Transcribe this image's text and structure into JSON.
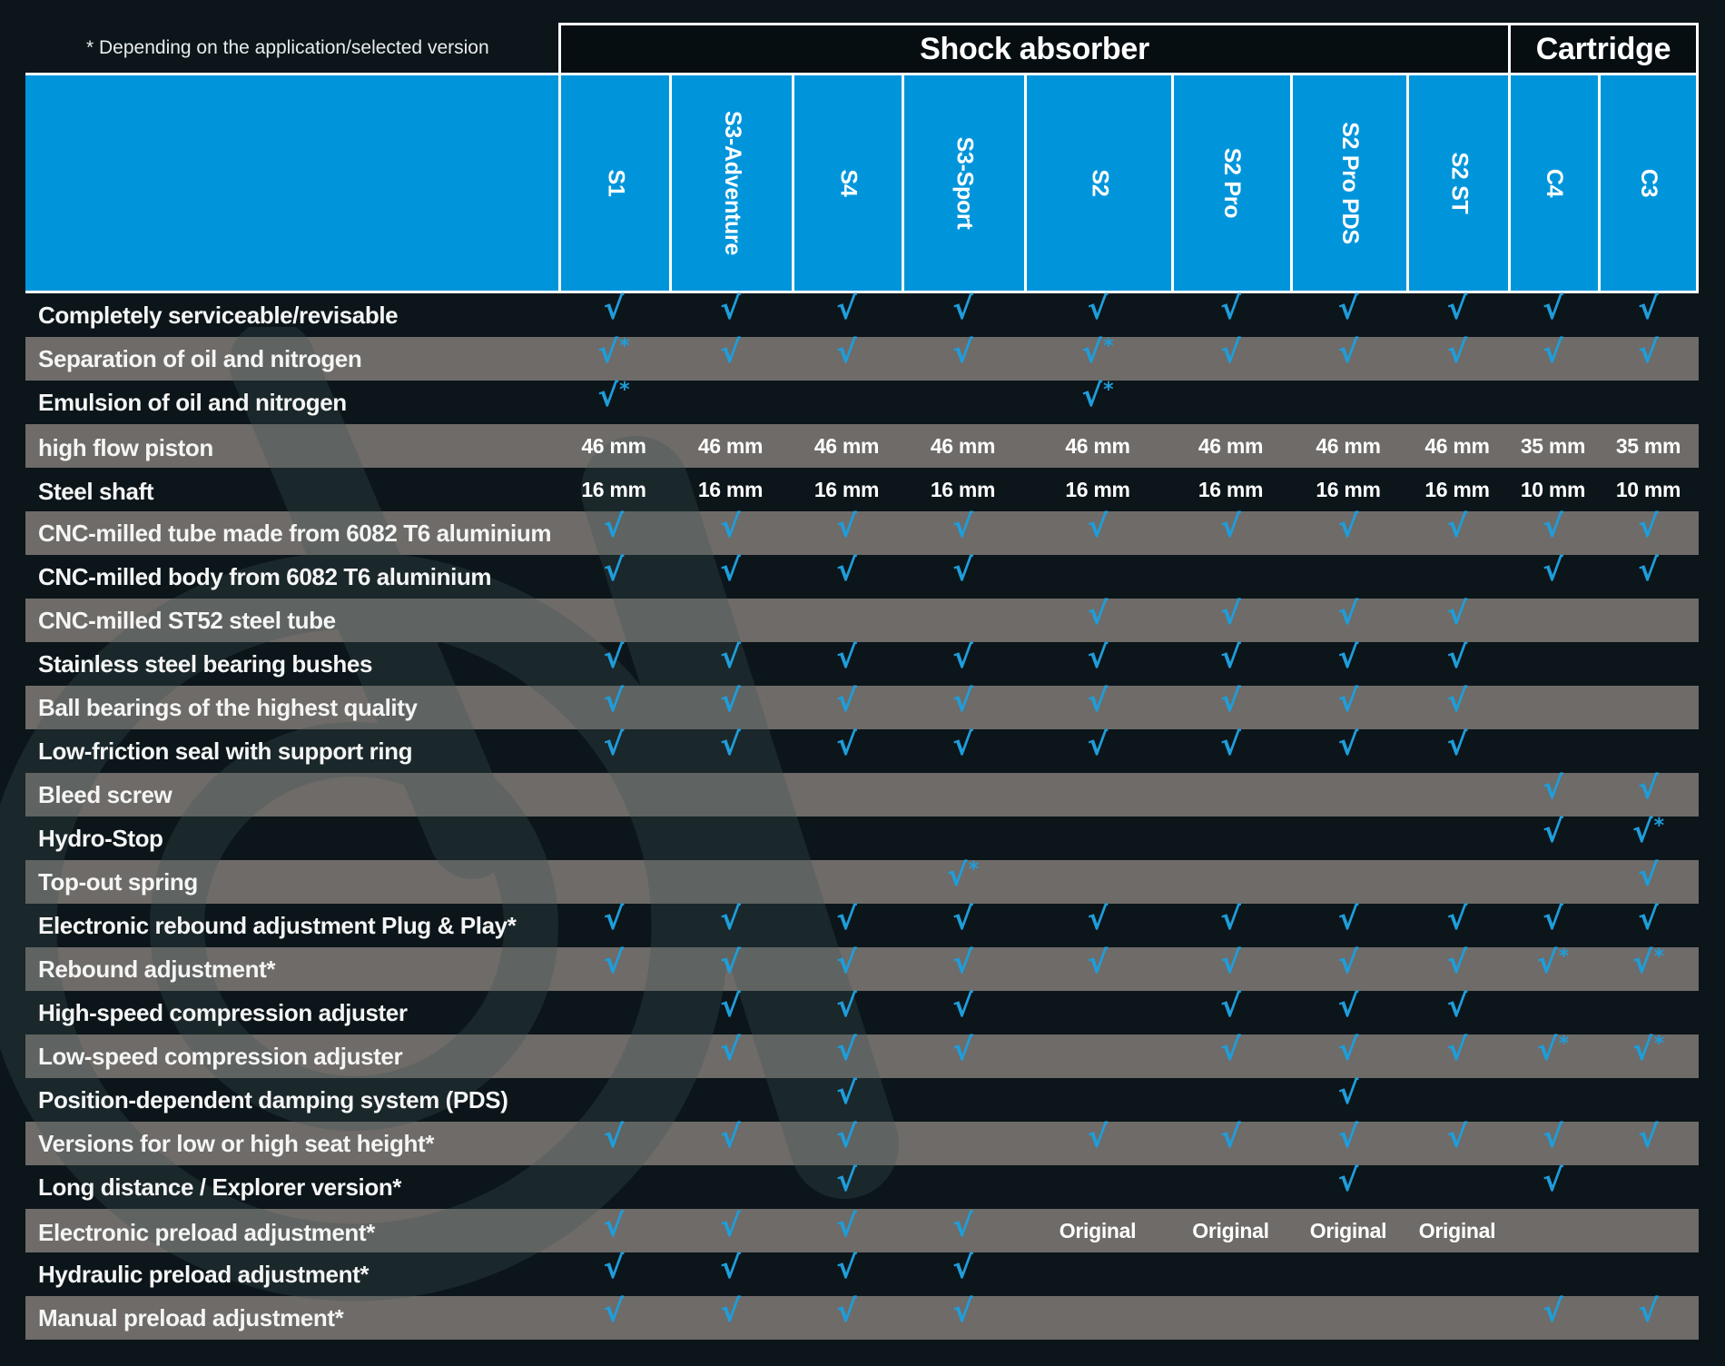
{
  "footnote": "* Depending on the application/selected version",
  "icons": {
    "check": "√"
  },
  "colors": {
    "background": "#0B151A",
    "header_blue": "#0095DB",
    "check_blue": "#1F9DDA",
    "gray_row": "#6E6B68",
    "group_header_bg": "#070E12",
    "text_white": "#FFFFFF"
  },
  "chart_data": {
    "type": "table",
    "groups": [
      {
        "label": "Shock absorber",
        "span": 8
      },
      {
        "label": "Cartridge",
        "span": 2
      }
    ],
    "columns": [
      "S1",
      "S3-Adventure",
      "S4",
      "S3-Sport",
      "S2",
      "S2 Pro",
      "S2 Pro PDS",
      "S2 ST",
      "C4",
      "C3"
    ],
    "rows": [
      {
        "label": "Completely serviceable/revisable",
        "cells": [
          "check",
          "check",
          "check",
          "check",
          "check",
          "check",
          "check",
          "check",
          "check",
          "check"
        ]
      },
      {
        "label": "Separation of oil and nitrogen",
        "cells": [
          "check*",
          "check",
          "check",
          "check",
          "check*",
          "check",
          "check",
          "check",
          "check",
          "check"
        ]
      },
      {
        "label": "Emulsion of oil and nitrogen",
        "cells": [
          "check*",
          "",
          "",
          "",
          "check*",
          "",
          "",
          "",
          "",
          ""
        ]
      },
      {
        "label": "high flow piston",
        "cells": [
          "46 mm",
          "46 mm",
          "46 mm",
          "46 mm",
          "46 mm",
          "46 mm",
          "46 mm",
          "46 mm",
          "35 mm",
          "35 mm"
        ]
      },
      {
        "label": "Steel shaft",
        "cells": [
          "16 mm",
          "16 mm",
          "16 mm",
          "16 mm",
          "16 mm",
          "16 mm",
          "16 mm",
          "16 mm",
          "10 mm",
          "10 mm"
        ]
      },
      {
        "label": "CNC-milled tube made from 6082 T6 aluminium",
        "cells": [
          "check",
          "check",
          "check",
          "check",
          "check",
          "check",
          "check",
          "check",
          "check",
          "check"
        ]
      },
      {
        "label": "CNC-milled body from 6082 T6 aluminium",
        "cells": [
          "check",
          "check",
          "check",
          "check",
          "",
          "",
          "",
          "",
          "check",
          "check"
        ]
      },
      {
        "label": "CNC-milled ST52 steel tube",
        "cells": [
          "",
          "",
          "",
          "",
          "check",
          "check",
          "check",
          "check",
          "",
          ""
        ]
      },
      {
        "label": "Stainless steel bearing bushes",
        "cells": [
          "check",
          "check",
          "check",
          "check",
          "check",
          "check",
          "check",
          "check",
          "",
          ""
        ]
      },
      {
        "label": "Ball bearings of the highest quality",
        "cells": [
          "check",
          "check",
          "check",
          "check",
          "check",
          "check",
          "check",
          "check",
          "",
          ""
        ]
      },
      {
        "label": "Low-friction seal with support ring",
        "cells": [
          "check",
          "check",
          "check",
          "check",
          "check",
          "check",
          "check",
          "check",
          "",
          ""
        ]
      },
      {
        "label": "Bleed screw",
        "cells": [
          "",
          "",
          "",
          "",
          "",
          "",
          "",
          "",
          "check",
          "check"
        ]
      },
      {
        "label": "Hydro-Stop",
        "cells": [
          "",
          "",
          "",
          "",
          "",
          "",
          "",
          "",
          "check",
          "check*"
        ]
      },
      {
        "label": "Top-out spring",
        "cells": [
          "",
          "",
          "",
          "check*",
          "",
          "",
          "",
          "",
          "",
          "check"
        ]
      },
      {
        "label": "Electronic rebound adjustment Plug & Play*",
        "cells": [
          "check",
          "check",
          "check",
          "check",
          "check",
          "check",
          "check",
          "check",
          "check",
          "check"
        ]
      },
      {
        "label": "Rebound adjustment*",
        "cells": [
          "check",
          "check",
          "check",
          "check",
          "check",
          "check",
          "check",
          "check",
          "check*",
          "check*"
        ]
      },
      {
        "label": "High-speed compression adjuster",
        "cells": [
          "",
          "check",
          "check",
          "check",
          "",
          "check",
          "check",
          "check",
          "",
          ""
        ]
      },
      {
        "label": "Low-speed compression adjuster",
        "cells": [
          "",
          "check",
          "check",
          "check",
          "",
          "check",
          "check",
          "check",
          "check*",
          "check*"
        ]
      },
      {
        "label": "Position-dependent damping system (PDS)",
        "cells": [
          "",
          "",
          "check",
          "",
          "",
          "",
          "check",
          "",
          "",
          ""
        ]
      },
      {
        "label": "Versions for low or high seat height*",
        "cells": [
          "check",
          "check",
          "check",
          "",
          "check",
          "check",
          "check",
          "check",
          "check",
          "check"
        ]
      },
      {
        "label": "Long distance / Explorer version*",
        "cells": [
          "",
          "",
          "check",
          "",
          "",
          "",
          "check",
          "",
          "check",
          ""
        ]
      },
      {
        "label": "Electronic preload adjustment*",
        "cells": [
          "check",
          "check",
          "check",
          "check",
          "Original",
          "Original",
          "Original",
          "Original",
          "",
          ""
        ]
      },
      {
        "label": "Hydraulic preload adjustment*",
        "cells": [
          "check",
          "check",
          "check",
          "check",
          "",
          "",
          "",
          "",
          "",
          ""
        ]
      },
      {
        "label": "Manual preload adjustment*",
        "cells": [
          "check",
          "check",
          "check",
          "check",
          "",
          "",
          "",
          "",
          "check",
          "check"
        ]
      }
    ]
  }
}
